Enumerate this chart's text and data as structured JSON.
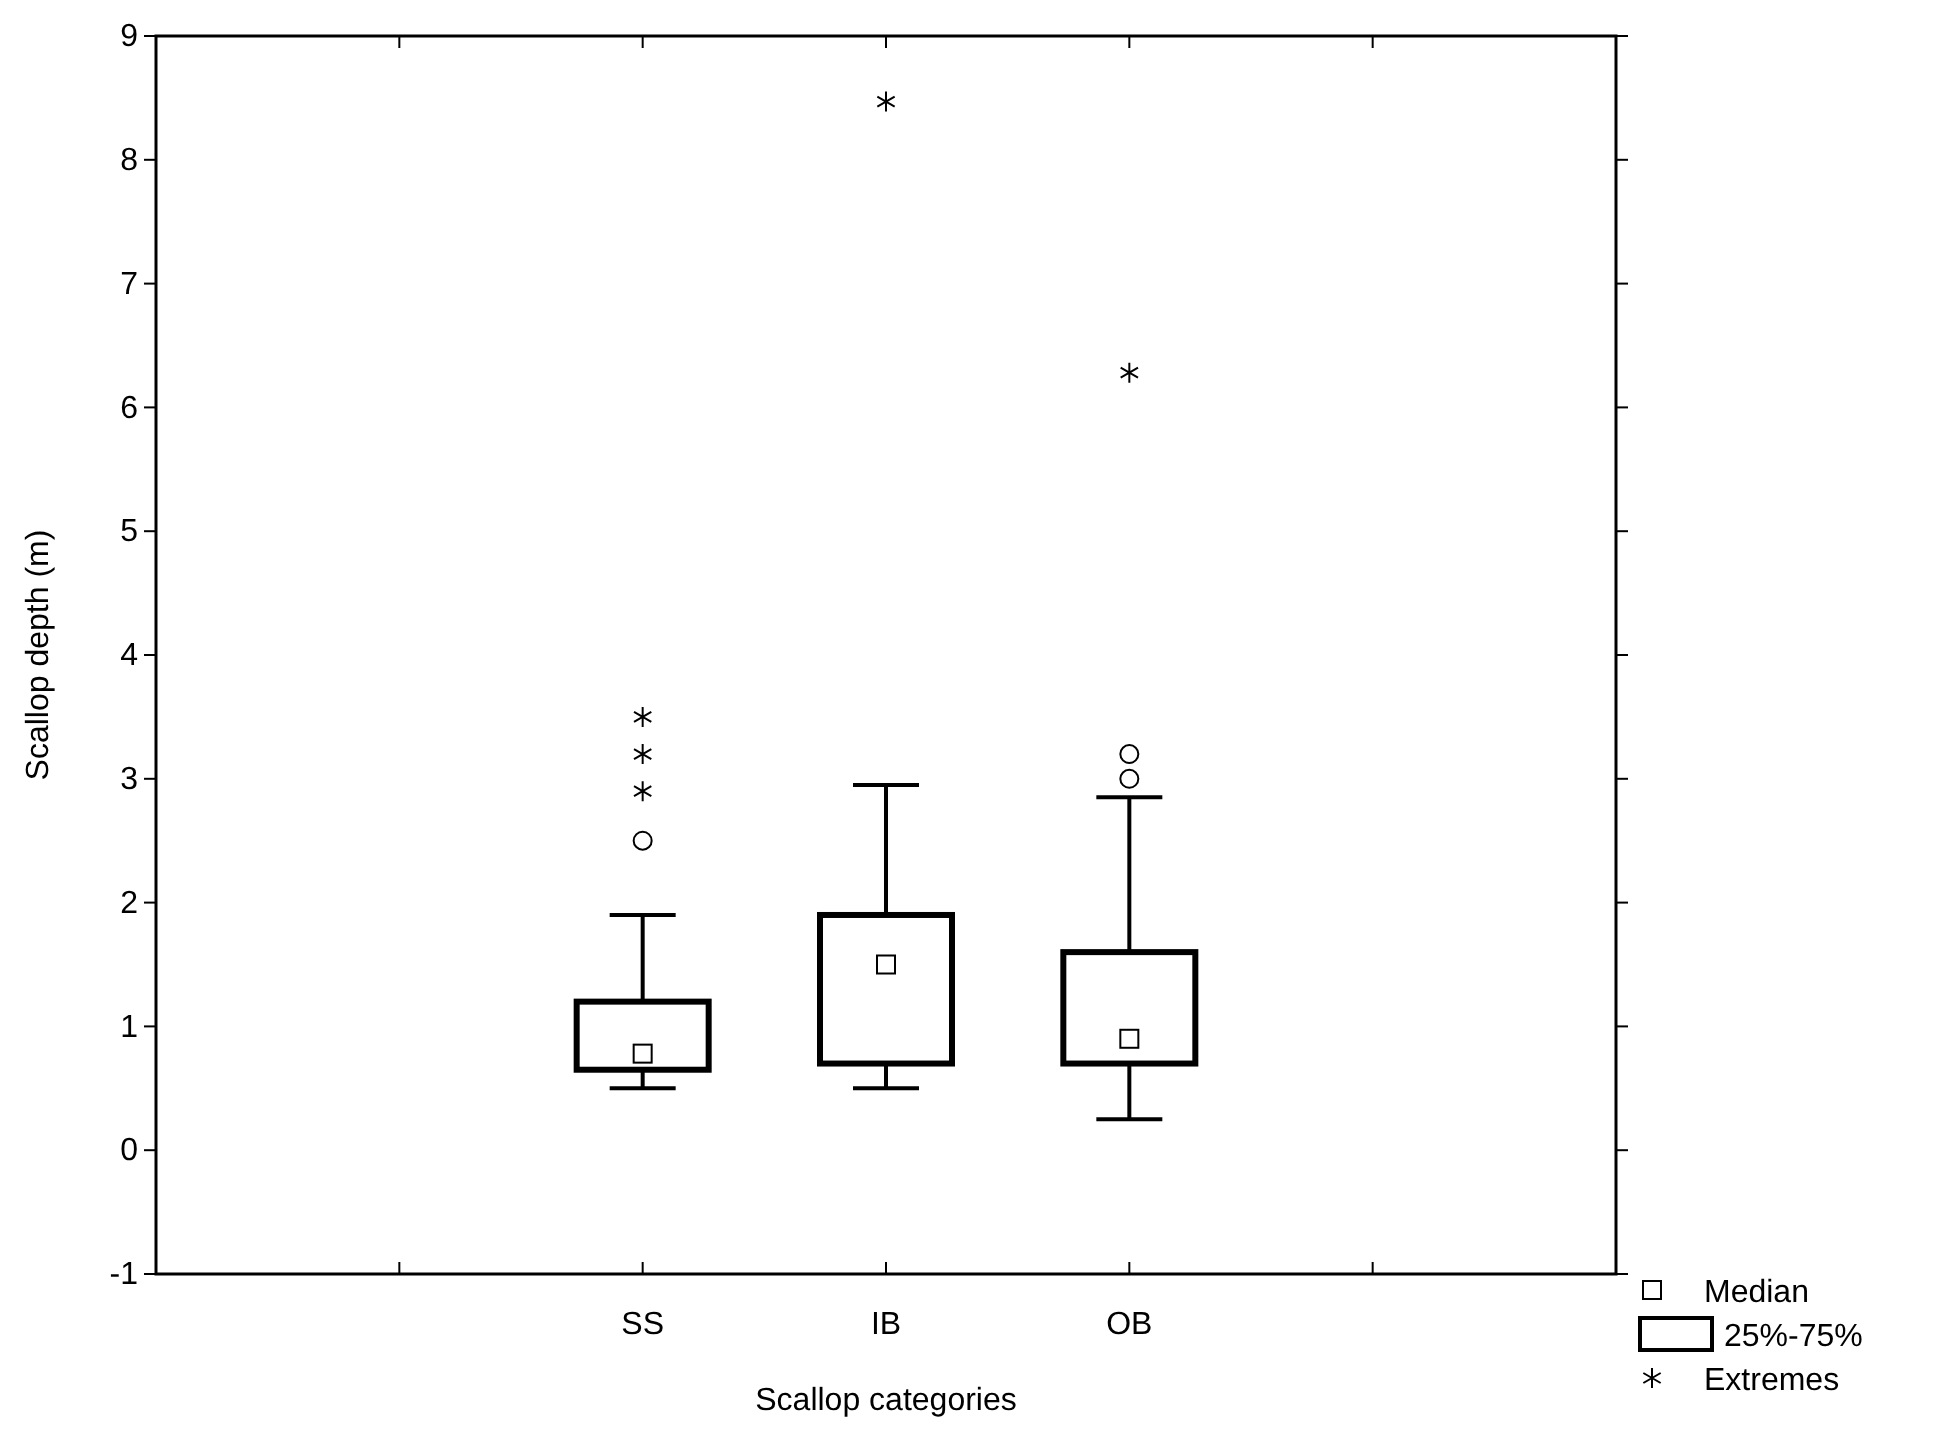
{
  "chart_data": {
    "type": "box",
    "xlabel": "Scallop categories",
    "ylabel": "Scallop depth (m)",
    "categories": [
      null,
      "SS",
      "IB",
      "OB",
      null
    ],
    "ylim": [
      -1,
      9
    ],
    "yticks": [
      -1,
      0,
      1,
      2,
      3,
      4,
      5,
      6,
      7,
      8,
      9
    ],
    "grid": false,
    "legend": "bottom right",
    "annotations": [
      "Median"
    ],
    "series": [
      {
        "name": "25%-75%",
        "color": "#000000",
        "boxes": [
          null,
          {
            "low": 0.5,
            "q1": 0.65,
            "median": 0.78,
            "q3": 1.2,
            "high": 1.9,
            "outliers": [
              2.5
            ]
          },
          {
            "low": 0.5,
            "q1": 0.7,
            "median": 1.5,
            "q3": 1.9,
            "high": 2.95
          },
          {
            "low": 0.25,
            "q1": 0.7,
            "median": 0.9,
            "q3": 1.6,
            "high": 2.85,
            "outliers": [
              3.0,
              3.2
            ]
          },
          null
        ]
      },
      {
        "type": "scatter",
        "name": "Extremes",
        "color": "#000000",
        "marker": "cross",
        "x": [
          "SS",
          "SS",
          "SS",
          "IB",
          "OB"
        ],
        "values": [
          2.9,
          3.2,
          3.5,
          8.47,
          6.28
        ]
      }
    ]
  }
}
